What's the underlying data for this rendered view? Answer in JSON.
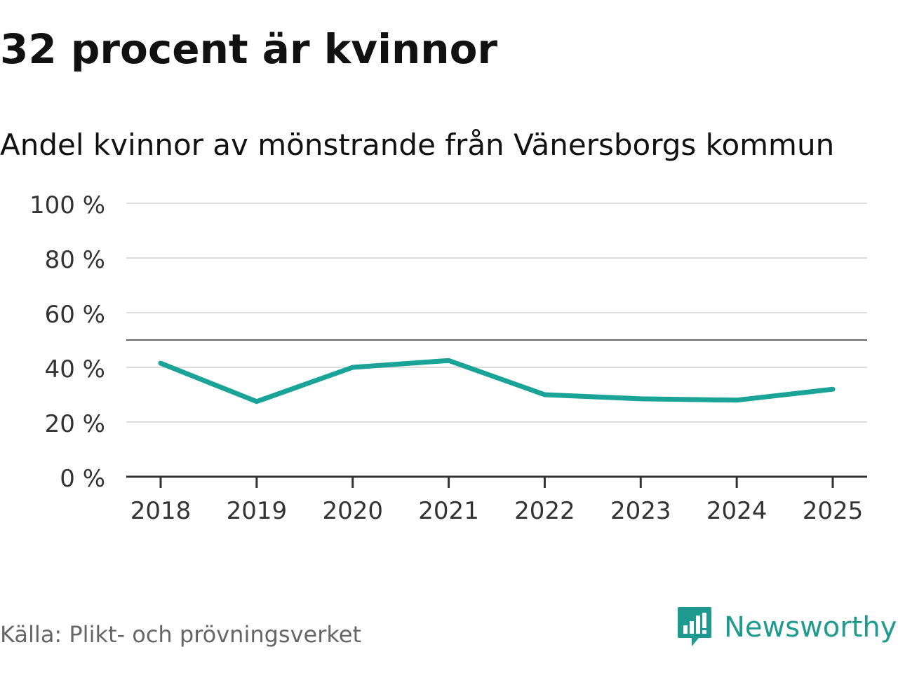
{
  "header": {
    "title": "32 procent är kvinnor",
    "subtitle": "Andel kvinnor av mönstrande från Vänersborgs kommun"
  },
  "footer": {
    "source": "Källa: Plikt- och prövningsverket",
    "brand": "Newsworthy",
    "brand_icon": "newsworthy-logo-icon"
  },
  "colors": {
    "line": "#1aa397",
    "grid": "#dddddd",
    "reference": "#666666",
    "axis": "#333333",
    "brand": "#1e9a8f"
  },
  "chart_data": {
    "type": "line",
    "categories": [
      "2018",
      "2019",
      "2020",
      "2021",
      "2022",
      "2023",
      "2024",
      "2025"
    ],
    "series": [
      {
        "values": [
          41.5,
          27.5,
          40,
          42.5,
          30,
          28.5,
          28,
          32
        ]
      }
    ],
    "ylim": [
      0,
      100
    ],
    "yticks": [
      0,
      20,
      40,
      60,
      80,
      100
    ],
    "ytick_labels": [
      "0 %",
      "20 %",
      "40 %",
      "60 %",
      "80 %",
      "100 %"
    ],
    "reference_line": 50,
    "grid": true
  }
}
